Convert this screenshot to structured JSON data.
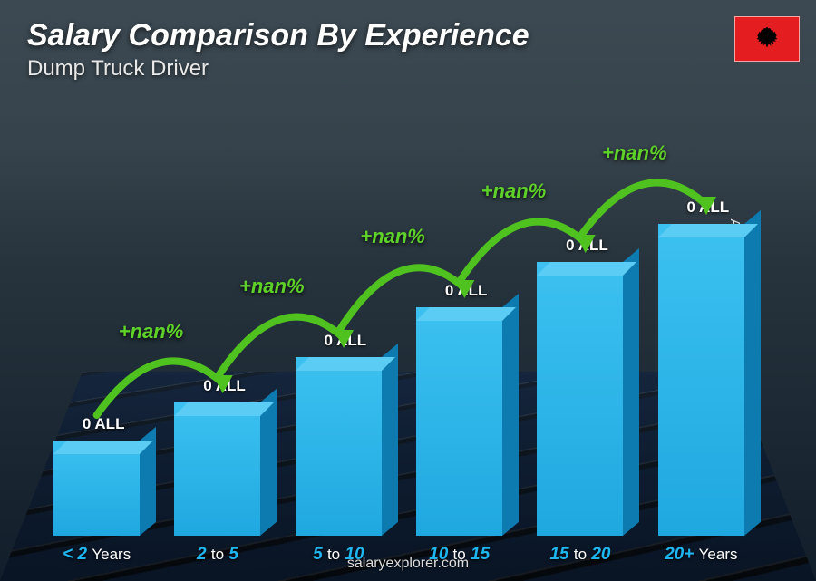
{
  "title": "Salary Comparison By Experience",
  "subtitle": "Dump Truck Driver",
  "footer": "salaryexplorer.com",
  "y_axis_label": "Average Monthly Salary",
  "flag": {
    "country": "Albania",
    "bg_color": "#e41e20",
    "emblem_color": "#000000"
  },
  "chart": {
    "type": "bar",
    "bar_color_front": "#1fa8e0",
    "bar_color_front_gradient_top": "#3cc1f0",
    "bar_color_side": "#0d7bb0",
    "bar_color_top": "#5bcdf5",
    "arc_color": "#4fc220",
    "arc_label_color": "#5fd22a",
    "value_label_color": "#ffffff",
    "category_label_color": "#1fb6f0",
    "currency": "ALL",
    "bars": [
      {
        "label_bold": "< 2",
        "label_unit": "Years",
        "value": 0,
        "height_pct": 25
      },
      {
        "label_bold": "2",
        "label_mid": "to",
        "label_bold2": "5",
        "value": 0,
        "height_pct": 35,
        "increase": "+nan%"
      },
      {
        "label_bold": "5",
        "label_mid": "to",
        "label_bold2": "10",
        "value": 0,
        "height_pct": 47,
        "increase": "+nan%"
      },
      {
        "label_bold": "10",
        "label_mid": "to",
        "label_bold2": "15",
        "value": 0,
        "height_pct": 60,
        "increase": "+nan%"
      },
      {
        "label_bold": "15",
        "label_mid": "to",
        "label_bold2": "20",
        "value": 0,
        "height_pct": 72,
        "increase": "+nan%"
      },
      {
        "label_bold": "20+",
        "label_unit": "Years",
        "value": 0,
        "height_pct": 82,
        "increase": "+nan%"
      }
    ]
  },
  "styling": {
    "title_fontsize": 34,
    "subtitle_fontsize": 24,
    "background_overlay": "rgba(10,20,30,0.55)"
  }
}
